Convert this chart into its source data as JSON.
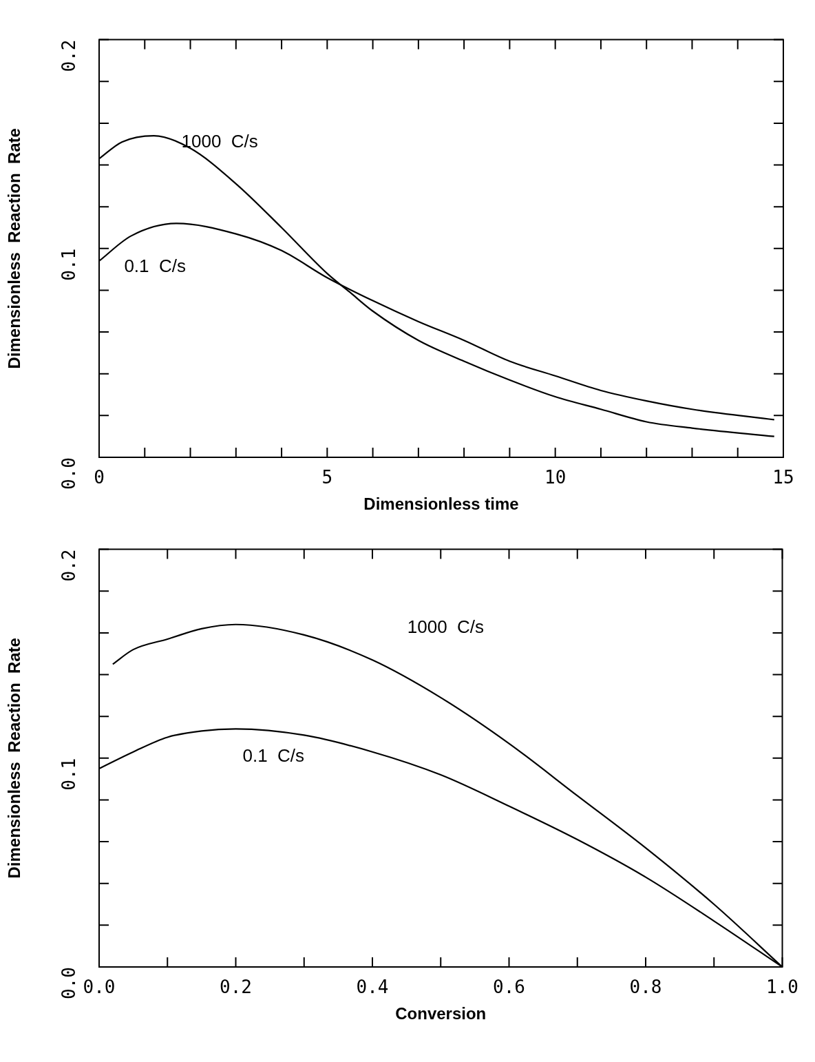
{
  "chart_data": [
    {
      "type": "line",
      "xlabel": "Dimensionless time",
      "ylabel": "Dimensionless  Reaction  Rate",
      "xlim": [
        0,
        15
      ],
      "ylim": [
        0,
        0.2
      ],
      "xticks": [
        0,
        {
          "value": 1,
          "label": null
        },
        {
          "value": 2,
          "label": null
        },
        {
          "value": 3,
          "label": null
        },
        {
          "value": 4,
          "label": null
        },
        5,
        {
          "value": 6,
          "label": null
        },
        {
          "value": 7,
          "label": null
        },
        {
          "value": 8,
          "label": null
        },
        {
          "value": 9,
          "label": null
        },
        10,
        {
          "value": 11,
          "label": null
        },
        {
          "value": 12,
          "label": null
        },
        {
          "value": 13,
          "label": null
        },
        {
          "value": 14,
          "label": null
        },
        15
      ],
      "yticks": [
        {
          "value": 0,
          "label": "0.0"
        },
        {
          "value": 0.02,
          "label": null
        },
        {
          "value": 0.04,
          "label": null
        },
        {
          "value": 0.06,
          "label": null
        },
        {
          "value": 0.08,
          "label": null
        },
        {
          "value": 0.1,
          "label": "0.1"
        },
        {
          "value": 0.12,
          "label": null
        },
        {
          "value": 0.14,
          "label": null
        },
        {
          "value": 0.16,
          "label": null
        },
        {
          "value": 0.18,
          "label": null
        },
        {
          "value": 0.2,
          "label": "0.2"
        }
      ],
      "series": [
        {
          "name": "1000  C/s",
          "color": "#000000",
          "x": [
            0,
            0.5,
            1.2,
            2,
            3,
            4,
            5,
            5.5,
            6,
            7,
            8,
            9,
            10,
            11,
            12,
            13,
            14.8
          ],
          "values": [
            0.143,
            0.151,
            0.154,
            0.148,
            0.131,
            0.11,
            0.088,
            0.079,
            0.07,
            0.056,
            0.046,
            0.037,
            0.029,
            0.023,
            0.017,
            0.014,
            0.01
          ]
        },
        {
          "name": "0.1  C/s",
          "color": "#000000",
          "x": [
            0,
            0.7,
            1.7,
            3,
            4,
            5,
            6,
            7,
            8,
            9,
            10,
            11,
            12,
            13,
            14.8
          ],
          "values": [
            0.094,
            0.106,
            0.112,
            0.107,
            0.099,
            0.086,
            0.075,
            0.065,
            0.056,
            0.046,
            0.039,
            0.032,
            0.027,
            0.023,
            0.018
          ]
        }
      ]
    },
    {
      "type": "line",
      "xlabel": "Conversion",
      "ylabel": "Dimensionless  Reaction  Rate",
      "xlim": [
        0,
        1
      ],
      "ylim": [
        0,
        0.2
      ],
      "xticks": [
        {
          "value": 0,
          "label": "0.0"
        },
        {
          "value": 0.1,
          "label": null
        },
        {
          "value": 0.2,
          "label": "0.2"
        },
        {
          "value": 0.3,
          "label": null
        },
        {
          "value": 0.4,
          "label": "0.4"
        },
        {
          "value": 0.5,
          "label": null
        },
        {
          "value": 0.6,
          "label": "0.6"
        },
        {
          "value": 0.7,
          "label": null
        },
        {
          "value": 0.8,
          "label": "0.8"
        },
        {
          "value": 0.9,
          "label": null
        },
        {
          "value": 1,
          "label": "1.0"
        }
      ],
      "yticks": [
        {
          "value": 0,
          "label": "0.0"
        },
        {
          "value": 0.02,
          "label": null
        },
        {
          "value": 0.04,
          "label": null
        },
        {
          "value": 0.06,
          "label": null
        },
        {
          "value": 0.08,
          "label": null
        },
        {
          "value": 0.1,
          "label": "0.1"
        },
        {
          "value": 0.12,
          "label": null
        },
        {
          "value": 0.14,
          "label": null
        },
        {
          "value": 0.16,
          "label": null
        },
        {
          "value": 0.18,
          "label": null
        },
        {
          "value": 0.2,
          "label": "0.2"
        }
      ],
      "series": [
        {
          "name": "1000  C/s",
          "color": "#000000",
          "x": [
            0.02,
            0.05,
            0.1,
            0.15,
            0.2,
            0.3,
            0.4,
            0.5,
            0.6,
            0.7,
            0.8,
            0.9,
            1
          ],
          "values": [
            0.145,
            0.152,
            0.157,
            0.162,
            0.164,
            0.159,
            0.147,
            0.129,
            0.107,
            0.082,
            0.057,
            0.03,
            0
          ]
        },
        {
          "name": "0.1  C/s",
          "color": "#000000",
          "x": [
            0,
            0.05,
            0.1,
            0.15,
            0.2,
            0.3,
            0.4,
            0.5,
            0.6,
            0.7,
            0.8,
            0.9,
            1
          ],
          "values": [
            0.095,
            0.103,
            0.11,
            0.113,
            0.114,
            0.111,
            0.103,
            0.092,
            0.077,
            0.061,
            0.043,
            0.022,
            0
          ]
        }
      ]
    }
  ]
}
